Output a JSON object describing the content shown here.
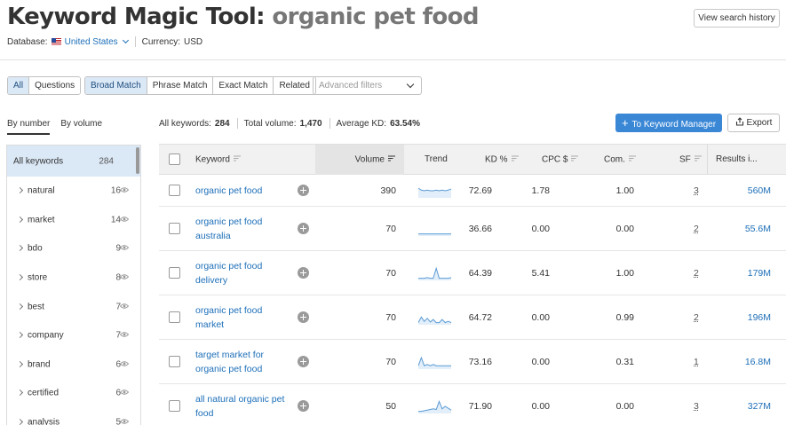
{
  "header": {
    "title_tool": "Keyword Magic Tool:",
    "title_keyword": "organic pet food",
    "history_button": "View search history",
    "database_label": "Database:",
    "database_value": "United States",
    "currency_label": "Currency:",
    "currency_value": "USD"
  },
  "match_tabs": {
    "type": [
      "All",
      "Questions"
    ],
    "match": [
      "Broad Match",
      "Phrase Match",
      "Exact Match",
      "Related"
    ],
    "active_type": "All",
    "active_match": "Broad Match"
  },
  "advanced_filters": {
    "placeholder": "Advanced filters"
  },
  "sort_tabs": [
    "By number",
    "By volume"
  ],
  "stats": {
    "all_keywords_label": "All keywords:",
    "all_keywords_value": "284",
    "total_volume_label": "Total volume:",
    "total_volume_value": "1,470",
    "avg_kd_label": "Average KD:",
    "avg_kd_value": "63.54%"
  },
  "actions": {
    "keyword_manager": "To Keyword Manager",
    "export": "Export"
  },
  "sidebar": {
    "all": {
      "label": "All keywords",
      "count": "284"
    },
    "groups": [
      {
        "label": "natural",
        "count": "16"
      },
      {
        "label": "market",
        "count": "14"
      },
      {
        "label": "bdo",
        "count": "9"
      },
      {
        "label": "store",
        "count": "8"
      },
      {
        "label": "best",
        "count": "7"
      },
      {
        "label": "company",
        "count": "7"
      },
      {
        "label": "brand",
        "count": "6"
      },
      {
        "label": "certified",
        "count": "6"
      },
      {
        "label": "analysis",
        "count": "5"
      }
    ]
  },
  "table": {
    "columns": {
      "keyword": "Keyword",
      "volume": "Volume",
      "trend": "Trend",
      "kd": "KD %",
      "cpc": "CPC $",
      "com": "Com.",
      "sf": "SF",
      "results": "Results i..."
    },
    "rows": [
      {
        "keyword": "organic pet food",
        "volume": "390",
        "trend": [
          0.7,
          0.55,
          0.5,
          0.55,
          0.5,
          0.5,
          0.55,
          0.5,
          0.55,
          0.5,
          0.55,
          0.65
        ],
        "kd": "72.69",
        "cpc": "1.78",
        "com": "1.00",
        "sf": "3",
        "results": "560M"
      },
      {
        "keyword": "organic pet food australia",
        "volume": "70",
        "trend": [
          0.1,
          0.1,
          0.1,
          0.1,
          0.1,
          0.1,
          0.1,
          0.1,
          0.1,
          0.1,
          0.1,
          0.1
        ],
        "kd": "36.66",
        "cpc": "0.00",
        "com": "0.00",
        "sf": "2",
        "results": "55.6M"
      },
      {
        "keyword": "organic pet food delivery",
        "volume": "70",
        "trend": [
          0.1,
          0.1,
          0.1,
          0.15,
          0.1,
          0.1,
          0.9,
          0.1,
          0.1,
          0.1,
          0.1,
          0.15
        ],
        "kd": "64.39",
        "cpc": "5.41",
        "com": "1.00",
        "sf": "2",
        "results": "179M"
      },
      {
        "keyword": "organic pet food market",
        "volume": "70",
        "trend": [
          0.1,
          0.55,
          0.2,
          0.45,
          0.15,
          0.35,
          0.1,
          0.1,
          0.35,
          0.1,
          0.2,
          0.1
        ],
        "kd": "64.72",
        "cpc": "0.00",
        "com": "0.99",
        "sf": "2",
        "results": "196M"
      },
      {
        "keyword": "target market for organic pet food",
        "volume": "70",
        "trend": [
          0.2,
          0.85,
          0.2,
          0.3,
          0.2,
          0.3,
          0.2,
          0.2,
          0.2,
          0.2,
          0.2,
          0.2
        ],
        "kd": "73.16",
        "cpc": "0.00",
        "com": "0.31",
        "sf": "1",
        "results": "16.8M"
      },
      {
        "keyword": "all natural organic pet food",
        "volume": "50",
        "trend": [
          0.1,
          0.1,
          0.15,
          0.2,
          0.25,
          0.3,
          0.25,
          0.9,
          0.3,
          0.5,
          0.35,
          0.2
        ],
        "kd": "71.90",
        "cpc": "0.00",
        "com": "0.00",
        "sf": "3",
        "results": "327M"
      }
    ]
  },
  "colors": {
    "accent": "#1d6fb8",
    "primary_button": "#3a87d6",
    "active_tab": "#dbe8f6",
    "sparkline": "#5b9bd5"
  }
}
